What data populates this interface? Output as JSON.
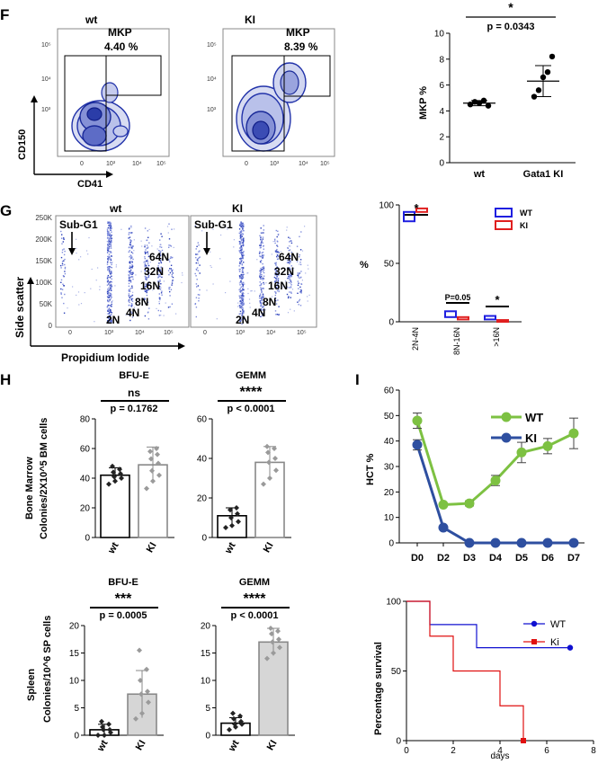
{
  "panels": {
    "F": {
      "letter": "F",
      "flow": [
        {
          "title": "wt",
          "gate_label": "MKP",
          "gate_pct": "4.40 %"
        },
        {
          "title": "KI",
          "gate_label": "MKP",
          "gate_pct": "8.39 %"
        }
      ],
      "flow_ylabel": "CD150",
      "flow_xlabel": "CD41",
      "flow_ticks": [
        "0",
        "10³",
        "10⁴",
        "10⁵"
      ],
      "flow_yticks": [
        "10³",
        "10⁴",
        "10⁵"
      ]
    },
    "G": {
      "letter": "G",
      "flow": [
        {
          "title": "wt",
          "label": "Sub-G1"
        },
        {
          "title": "KI",
          "label": "Sub-G1"
        }
      ],
      "ploidy_labels": [
        "64N",
        "32N",
        "16N",
        "8N",
        "4N",
        "2N"
      ],
      "ylabel": "Side scatter",
      "xlabel": "Propidium Iodide",
      "yticks": [
        "250K",
        "200K",
        "150K",
        "100K",
        "50K",
        "0"
      ],
      "xticks": [
        "0",
        "10³",
        "10⁴",
        "10⁵"
      ]
    },
    "H": {
      "letter": "H",
      "bm_ylabel_1": "Bone Marrow",
      "bm_ylabel_2": "Colonies/2X10^5 BM cells",
      "sp_ylabel_1": "Spleen",
      "sp_ylabel_2": "Colonies/10^6 SP cells"
    },
    "I": {
      "letter": "I"
    }
  },
  "chart_data": [
    {
      "id": "F-mkp",
      "type": "scatter",
      "categories": [
        "wt",
        "Gata1 KI"
      ],
      "ylabel": "MKP %",
      "ylim": [
        0,
        10
      ],
      "yticks": [
        "0",
        "2",
        "4",
        "6",
        "8",
        "10"
      ],
      "points": [
        [
          4.5,
          4.7,
          4.6,
          4.8,
          4.4
        ],
        [
          5.1,
          5.6,
          6.6,
          7.0,
          8.2
        ]
      ],
      "mean": [
        4.6,
        6.3
      ],
      "err": [
        0.2,
        1.2
      ],
      "annotation": "p = 0.0343",
      "sig": "*"
    },
    {
      "id": "G-ploidy",
      "type": "box",
      "categories": [
        "2N-4N",
        "8N-16N",
        ">16N"
      ],
      "ylabel": "%",
      "ylim": [
        0,
        100
      ],
      "yticks": [
        "0",
        "50",
        "100"
      ],
      "series": [
        {
          "name": "WT",
          "color": "#1f1fe0",
          "boxes": [
            [
              86,
              94
            ],
            [
              4,
              9
            ],
            [
              2,
              5
            ]
          ]
        },
        {
          "name": "KI",
          "color": "#e01f1f",
          "boxes": [
            [
              94,
              97
            ],
            [
              2,
              4
            ],
            [
              0.5,
              1.5
            ]
          ]
        }
      ],
      "annotations": [
        "*",
        "P=0.05",
        "*"
      ]
    },
    {
      "id": "H-bm-bfue",
      "type": "bar",
      "title": "BFU-E",
      "categories": [
        "wt",
        "KI"
      ],
      "values": [
        42,
        49
      ],
      "err": [
        5,
        12
      ],
      "ylim": [
        0,
        80
      ],
      "yticks": [
        "0",
        "20",
        "40",
        "60",
        "80"
      ],
      "points": [
        [
          36,
          38,
          40,
          41,
          43,
          44,
          46,
          48
        ],
        [
          33,
          38,
          42,
          45,
          50,
          53,
          56,
          58,
          60
        ]
      ],
      "sig": "ns",
      "annotation": "p = 0.1762"
    },
    {
      "id": "H-bm-gemm",
      "type": "bar",
      "title": "GEMM",
      "categories": [
        "wt",
        "KI"
      ],
      "values": [
        11,
        38
      ],
      "err": [
        4,
        8
      ],
      "ylim": [
        0,
        60
      ],
      "yticks": [
        "0",
        "20",
        "40",
        "60"
      ],
      "points": [
        [
          5,
          6,
          8,
          10,
          12,
          14,
          15
        ],
        [
          27,
          30,
          34,
          38,
          40,
          43,
          45,
          46
        ]
      ],
      "sig": "****",
      "annotation": "p < 0.0001"
    },
    {
      "id": "H-sp-bfue",
      "type": "bar",
      "title": "BFU-E",
      "categories": [
        "wt",
        "KI"
      ],
      "values": [
        1,
        7.5
      ],
      "err": [
        1,
        4.3
      ],
      "ylim": [
        0,
        20
      ],
      "yticks": [
        "0",
        "5",
        "10",
        "15",
        "20"
      ],
      "points": [
        [
          0,
          0,
          0.5,
          1,
          1,
          1.5,
          2,
          2.5
        ],
        [
          3,
          4,
          6,
          7.5,
          8,
          10,
          12,
          15.5
        ]
      ],
      "sig": "***",
      "annotation": "p = 0.0005"
    },
    {
      "id": "H-sp-gemm",
      "type": "bar",
      "title": "GEMM",
      "categories": [
        "wt",
        "KI"
      ],
      "values": [
        2.2,
        17
      ],
      "err": [
        1,
        2.5
      ],
      "ylim": [
        0,
        20
      ],
      "yticks": [
        "0",
        "5",
        "10",
        "15",
        "20"
      ],
      "points": [
        [
          1,
          1.5,
          2,
          2,
          2.5,
          3,
          3.5,
          4
        ],
        [
          14,
          15,
          16,
          17,
          17.5,
          18.5,
          19,
          19.5
        ]
      ],
      "sig": "****",
      "annotation": "p < 0.0001"
    },
    {
      "id": "I-hct",
      "type": "line",
      "ylabel": "HCT %",
      "x": [
        "D0",
        "D2",
        "D3",
        "D4",
        "D5",
        "D6",
        "D7"
      ],
      "ylim": [
        0,
        60
      ],
      "yticks": [
        "0",
        "10",
        "20",
        "30",
        "40",
        "50",
        "60"
      ],
      "series": [
        {
          "name": "WT",
          "color": "#7dc142",
          "values": [
            48,
            15,
            15.5,
            24.5,
            35.5,
            38,
            43
          ],
          "err": [
            3,
            0,
            1,
            2,
            4,
            3,
            6
          ]
        },
        {
          "name": "KI",
          "color": "#2e4fa0",
          "values": [
            38.5,
            6,
            0,
            0,
            0,
            0,
            0
          ],
          "err": [
            2,
            0,
            0,
            0,
            0,
            0,
            0
          ]
        }
      ]
    },
    {
      "id": "I-survival",
      "type": "line",
      "ylabel": "Percentage survival",
      "xlabel": "days",
      "xlim": [
        0,
        8
      ],
      "ylim": [
        0,
        100
      ],
      "xticks": [
        "0",
        "2",
        "4",
        "6",
        "8"
      ],
      "yticks": [
        "0",
        "50",
        "100"
      ],
      "series": [
        {
          "name": "WT",
          "color": "#1010d0",
          "steps": [
            [
              0,
              100
            ],
            [
              1,
              100
            ],
            [
              1,
              83.3
            ],
            [
              3,
              83.3
            ],
            [
              3,
              66.7
            ],
            [
              7,
              66.7
            ]
          ]
        },
        {
          "name": "Ki",
          "color": "#e01010",
          "steps": [
            [
              0,
              100
            ],
            [
              1,
              100
            ],
            [
              1,
              75
            ],
            [
              2,
              75
            ],
            [
              2,
              50
            ],
            [
              4,
              50
            ],
            [
              4,
              25
            ],
            [
              5,
              25
            ],
            [
              5,
              0
            ]
          ]
        }
      ]
    }
  ]
}
